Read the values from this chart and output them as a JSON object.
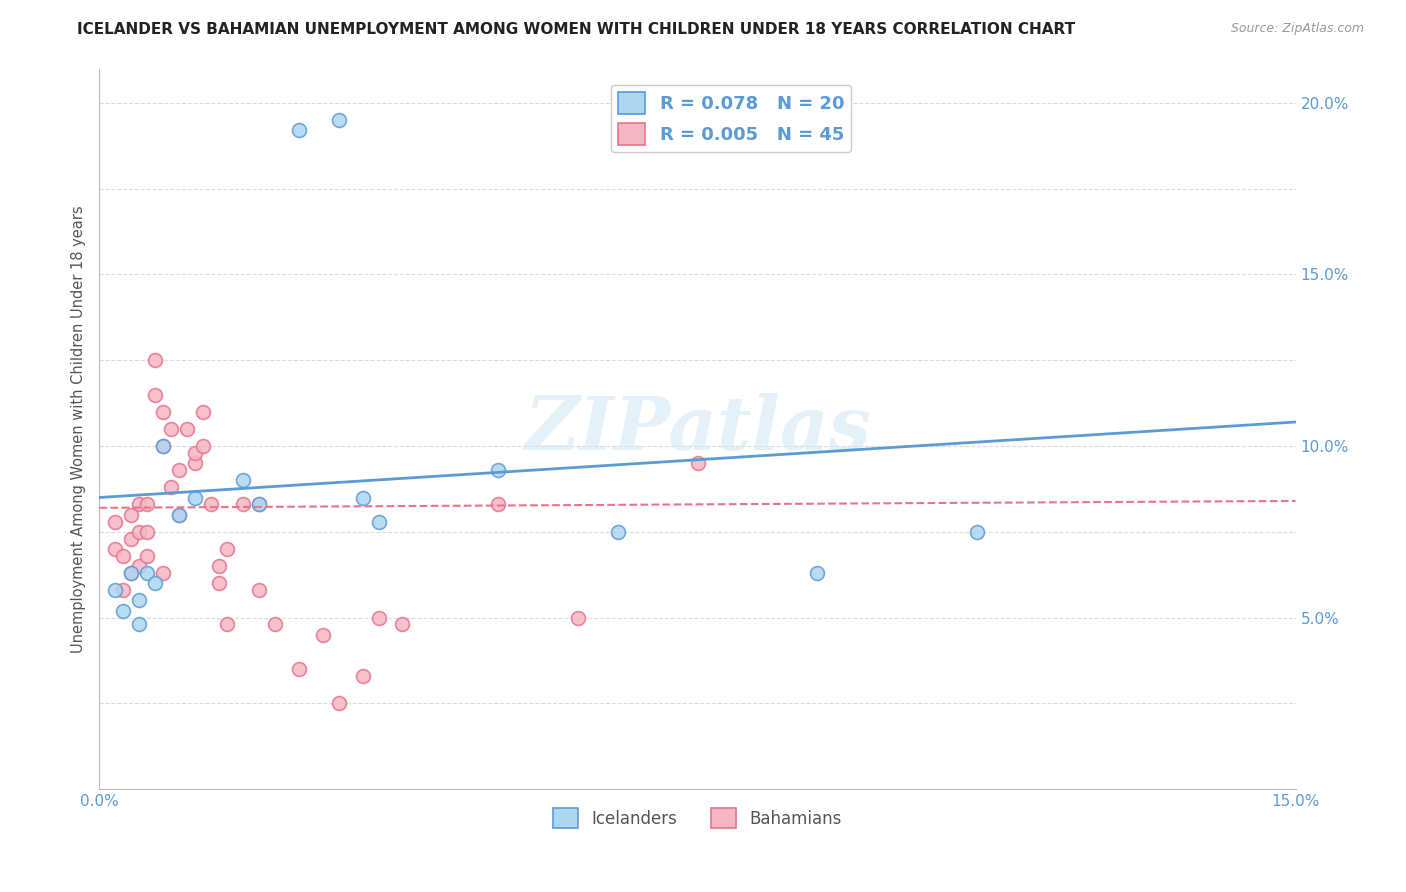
{
  "title": "ICELANDER VS BAHAMIAN UNEMPLOYMENT AMONG WOMEN WITH CHILDREN UNDER 18 YEARS CORRELATION CHART",
  "source": "Source: ZipAtlas.com",
  "ylabel": "Unemployment Among Women with Children Under 18 years",
  "xlim": [
    0.0,
    0.15
  ],
  "ylim": [
    0.0,
    0.21
  ],
  "xticks": [
    0.0,
    0.025,
    0.05,
    0.075,
    0.1,
    0.125,
    0.15
  ],
  "yticks": [
    0.0,
    0.025,
    0.05,
    0.075,
    0.1,
    0.125,
    0.15,
    0.175,
    0.2
  ],
  "ytick_labels_right": [
    "",
    "",
    "5.0%",
    "",
    "10.0%",
    "",
    "15.0%",
    "",
    "20.0%"
  ],
  "xtick_labels": [
    "0.0%",
    "",
    "",
    "",
    "",
    "",
    "15.0%"
  ],
  "watermark": "ZIPatlas",
  "R_icelanders": 0.078,
  "N_icelanders": 20,
  "R_bahamians": 0.005,
  "N_bahamians": 45,
  "icelanders_x": [
    0.002,
    0.003,
    0.004,
    0.005,
    0.005,
    0.006,
    0.007,
    0.008,
    0.01,
    0.012,
    0.018,
    0.02,
    0.025,
    0.03,
    0.033,
    0.035,
    0.05,
    0.065,
    0.09,
    0.11
  ],
  "icelanders_y": [
    0.058,
    0.052,
    0.063,
    0.055,
    0.048,
    0.063,
    0.06,
    0.1,
    0.08,
    0.085,
    0.09,
    0.083,
    0.192,
    0.195,
    0.085,
    0.078,
    0.093,
    0.075,
    0.063,
    0.075
  ],
  "bahamians_x": [
    0.002,
    0.002,
    0.003,
    0.003,
    0.004,
    0.004,
    0.004,
    0.005,
    0.005,
    0.005,
    0.006,
    0.006,
    0.006,
    0.007,
    0.007,
    0.008,
    0.008,
    0.008,
    0.009,
    0.009,
    0.01,
    0.01,
    0.011,
    0.012,
    0.012,
    0.013,
    0.013,
    0.014,
    0.015,
    0.015,
    0.016,
    0.016,
    0.018,
    0.02,
    0.02,
    0.022,
    0.025,
    0.028,
    0.03,
    0.033,
    0.035,
    0.038,
    0.05,
    0.06,
    0.075
  ],
  "bahamians_y": [
    0.07,
    0.078,
    0.068,
    0.058,
    0.063,
    0.073,
    0.08,
    0.065,
    0.075,
    0.083,
    0.068,
    0.075,
    0.083,
    0.115,
    0.125,
    0.1,
    0.11,
    0.063,
    0.105,
    0.088,
    0.08,
    0.093,
    0.105,
    0.095,
    0.098,
    0.1,
    0.11,
    0.083,
    0.06,
    0.065,
    0.048,
    0.07,
    0.083,
    0.058,
    0.083,
    0.048,
    0.035,
    0.045,
    0.025,
    0.033,
    0.05,
    0.048,
    0.083,
    0.05,
    0.095
  ],
  "blue_line_x": [
    0.0,
    0.15
  ],
  "blue_line_y": [
    0.085,
    0.107
  ],
  "pink_line_x": [
    0.0,
    0.15
  ],
  "pink_line_y": [
    0.082,
    0.084
  ],
  "bg_color": "#ffffff",
  "scatter_size": 100,
  "marker_edge_width": 1.2,
  "icelanders_face": "#aed6f1",
  "icelanders_edge": "#5b9bd5",
  "bahamians_face": "#f5b7c4",
  "bahamians_edge": "#e8748a",
  "title_color": "#222222",
  "axis_color": "#5b9bd5",
  "grid_color": "#cccccc",
  "grid_alpha": 0.7
}
